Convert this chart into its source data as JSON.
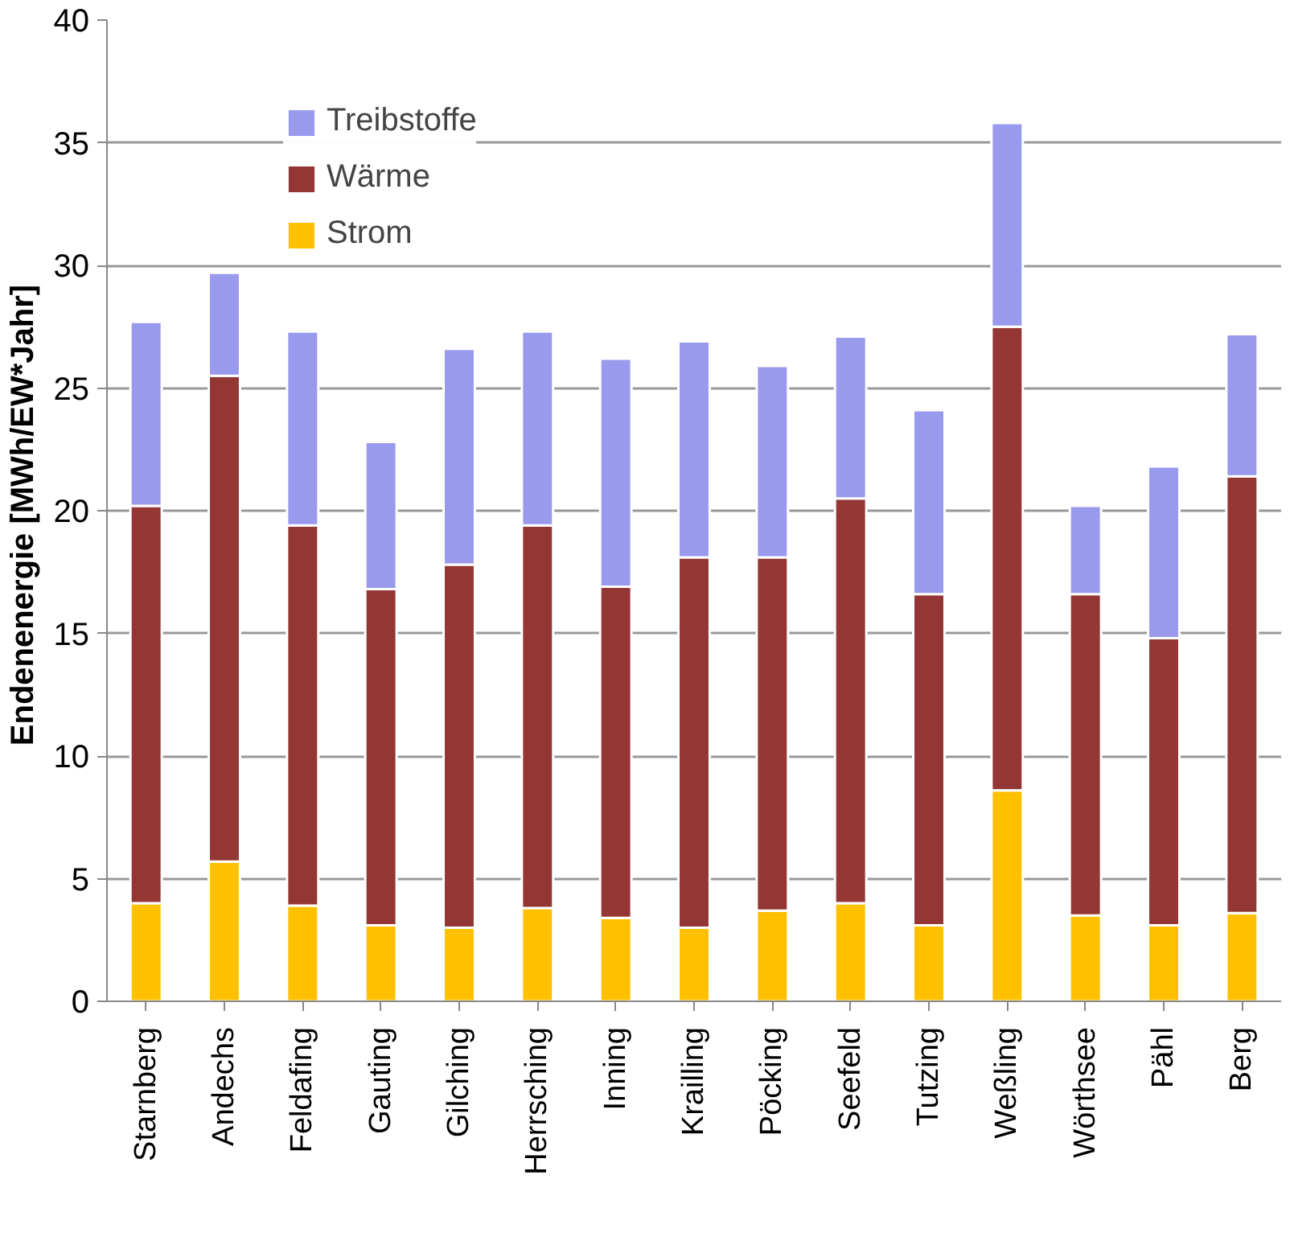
{
  "chart_data": {
    "type": "bar",
    "stacked": true,
    "ylabel": "Endenenergie  [MWh/EW*Jahr]",
    "categories": [
      "Starnberg",
      "Andechs",
      "Feldafing",
      "Gauting",
      "Gilching",
      "Herrsching",
      "Inning",
      "Krailling",
      "Pöcking",
      "Seefeld",
      "Tutzing",
      "Weßling",
      "Wörthsee",
      "Pähl",
      "Berg"
    ],
    "series": [
      {
        "name": "Strom",
        "color": "#ffc000",
        "values": [
          4.0,
          5.7,
          3.9,
          3.1,
          3.0,
          3.8,
          3.4,
          3.0,
          3.7,
          4.0,
          3.1,
          8.6,
          3.5,
          3.1,
          3.6
        ]
      },
      {
        "name": "Wärme",
        "color": "#943634",
        "values": [
          16.2,
          19.8,
          15.5,
          13.7,
          14.8,
          15.6,
          13.5,
          15.1,
          14.4,
          16.5,
          13.5,
          18.9,
          13.1,
          11.7,
          17.8
        ]
      },
      {
        "name": "Treibstoffe",
        "color": "#9999ee",
        "values": [
          7.5,
          4.2,
          7.9,
          6.0,
          8.8,
          7.9,
          9.3,
          8.8,
          7.8,
          6.6,
          7.5,
          8.3,
          3.6,
          7.0,
          5.8
        ]
      }
    ],
    "ylim": [
      0,
      40
    ],
    "yticks": [
      0,
      5,
      10,
      15,
      20,
      25,
      30,
      35,
      40
    ],
    "grid": "y",
    "legend": "top left"
  }
}
